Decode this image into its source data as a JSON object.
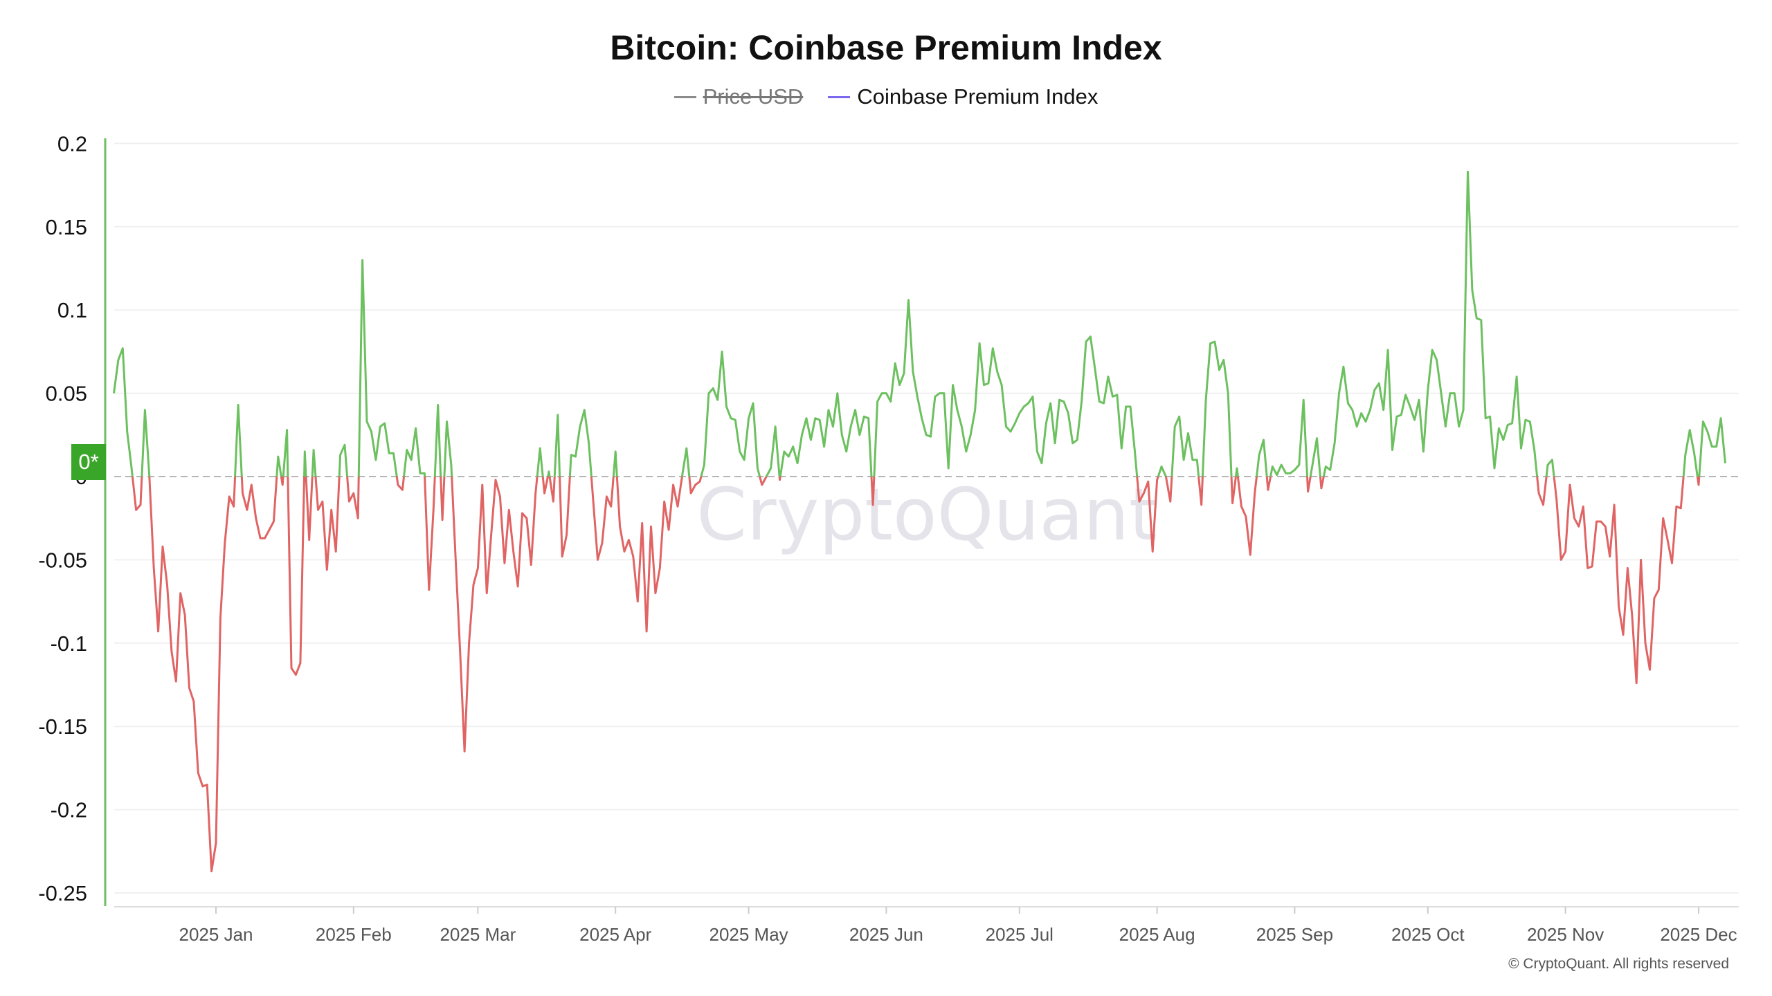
{
  "chart_data": {
    "type": "line",
    "title": "Bitcoin: Coinbase Premium Index",
    "legend": [
      {
        "name": "Price USD",
        "color": "#8c8c8c",
        "hidden": true
      },
      {
        "name": "Coinbase Premium Index",
        "color": "#7b68ee",
        "hidden": false
      }
    ],
    "legend_placement": "top-center",
    "positive_color": "#6cc05f",
    "negative_color": "#e06464",
    "reference_line": 0,
    "reference_label": "0*",
    "ylim": [
      -0.25,
      0.2
    ],
    "yticks": [
      "0.2",
      "0.15",
      "0.1",
      "0.05",
      "0",
      "-0.05",
      "-0.1",
      "-0.15",
      "-0.2",
      "-0.25"
    ],
    "ytick_values": [
      0.2,
      0.15,
      0.1,
      0.05,
      0,
      -0.05,
      -0.1,
      -0.15,
      -0.2,
      -0.25
    ],
    "xticks": [
      {
        "label": "2025 Jan",
        "date": "2025-01-01"
      },
      {
        "label": "2025 Feb",
        "date": "2025-02-01"
      },
      {
        "label": "2025 Mar",
        "date": "2025-03-01"
      },
      {
        "label": "2025 Apr",
        "date": "2025-04-01"
      },
      {
        "label": "2025 May",
        "date": "2025-05-01"
      },
      {
        "label": "2025 Jun",
        "date": "2025-06-01"
      },
      {
        "label": "2025 Jul",
        "date": "2025-07-01"
      },
      {
        "label": "2025 Aug",
        "date": "2025-08-01"
      },
      {
        "label": "2025 Sep",
        "date": "2025-09-01"
      },
      {
        "label": "2025 Oct",
        "date": "2025-10-01"
      },
      {
        "label": "2025 Nov",
        "date": "2025-11-01"
      },
      {
        "label": "2025 Dec",
        "date": "2025-12-01"
      }
    ],
    "grid": true,
    "series_by_month": [
      {
        "month": "2024-12",
        "values": [
          null,
          null,
          null,
          null,
          null,
          null,
          null,
          null,
          0.05,
          0.07,
          0.077,
          0.027,
          0.005,
          -0.02,
          -0.017,
          0.04,
          0.0,
          -0.055,
          -0.093,
          -0.042,
          -0.065,
          -0.105,
          -0.123,
          -0.07,
          -0.083,
          -0.127,
          -0.135,
          -0.178,
          -0.186,
          -0.185,
          -0.237
        ]
      },
      {
        "month": "2025-01",
        "values": [
          -0.22,
          -0.085,
          -0.04,
          -0.012,
          -0.018,
          0.043,
          -0.01,
          -0.02,
          -0.005,
          -0.025,
          -0.037,
          -0.037,
          -0.032,
          -0.027,
          0.012,
          -0.005,
          0.028,
          -0.115,
          -0.119,
          -0.112,
          0.015,
          -0.038,
          0.016,
          -0.02,
          -0.015,
          -0.056,
          -0.02,
          -0.045,
          0.013,
          0.019,
          -0.015
        ]
      },
      {
        "month": "2025-02",
        "values": [
          -0.01,
          -0.025,
          0.13,
          0.033,
          0.027,
          0.01,
          0.03,
          0.032,
          0.014,
          0.014,
          -0.005,
          -0.008,
          0.016,
          0.01,
          0.029,
          0.002,
          0.002,
          -0.068,
          -0.02,
          0.043,
          -0.026,
          0.033,
          0.007,
          -0.05,
          -0.105,
          -0.165,
          -0.1,
          -0.065
        ]
      },
      {
        "month": "2025-03",
        "values": [
          -0.055,
          -0.005,
          -0.07,
          -0.035,
          -0.002,
          -0.012,
          -0.052,
          -0.02,
          -0.045,
          -0.066,
          -0.022,
          -0.025,
          -0.053,
          -0.01,
          0.017,
          -0.01,
          0.003,
          -0.015,
          0.037,
          -0.048,
          -0.035,
          0.013,
          0.012,
          0.03,
          0.04,
          0.02,
          -0.015,
          -0.05,
          -0.04,
          -0.012,
          -0.018
        ]
      },
      {
        "month": "2025-04",
        "values": [
          0.015,
          -0.03,
          -0.045,
          -0.038,
          -0.048,
          -0.075,
          -0.028,
          -0.093,
          -0.03,
          -0.07,
          -0.055,
          -0.015,
          -0.032,
          -0.005,
          -0.018,
          0.0,
          0.017,
          -0.01,
          -0.005,
          -0.003,
          0.007,
          0.05,
          0.053,
          0.046,
          0.075,
          0.042,
          0.035,
          0.034,
          0.015,
          0.01
        ]
      },
      {
        "month": "2025-05",
        "values": [
          0.035,
          0.044,
          0.005,
          -0.005,
          0.0,
          0.005,
          0.03,
          -0.002,
          0.015,
          0.012,
          0.018,
          0.008,
          0.025,
          0.035,
          0.022,
          0.035,
          0.034,
          0.018,
          0.04,
          0.03,
          0.05,
          0.025,
          0.015,
          0.03,
          0.04,
          0.025,
          0.036,
          0.035,
          -0.017,
          0.045,
          0.05
        ]
      },
      {
        "month": "2025-06",
        "values": [
          0.05,
          0.045,
          0.068,
          0.055,
          0.062,
          0.106,
          0.063,
          0.048,
          0.035,
          0.025,
          0.024,
          0.048,
          0.05,
          0.05,
          0.005,
          0.055,
          0.04,
          0.03,
          0.015,
          0.025,
          0.04,
          0.08,
          0.055,
          0.056,
          0.077,
          0.063,
          0.055,
          0.03,
          0.027,
          0.032
        ]
      },
      {
        "month": "2025-07",
        "values": [
          0.038,
          0.042,
          0.044,
          0.048,
          0.015,
          0.008,
          0.032,
          0.044,
          0.02,
          0.046,
          0.045,
          0.038,
          0.02,
          0.022,
          0.045,
          0.081,
          0.084,
          0.065,
          0.045,
          0.044,
          0.06,
          0.048,
          0.049,
          0.017,
          0.042,
          0.042,
          0.015,
          -0.015,
          -0.01,
          -0.003,
          -0.045
        ]
      },
      {
        "month": "2025-08",
        "values": [
          -0.002,
          0.006,
          0.0,
          -0.015,
          0.03,
          0.036,
          0.01,
          0.026,
          0.01,
          0.01,
          -0.017,
          0.046,
          0.08,
          0.081,
          0.064,
          0.07,
          0.05,
          -0.016,
          0.005,
          -0.018,
          -0.024,
          -0.047,
          -0.01,
          0.013,
          0.022,
          -0.008,
          0.006,
          0.001,
          0.007,
          0.002,
          0.002
        ]
      },
      {
        "month": "2025-09",
        "values": [
          0.004,
          0.007,
          0.046,
          -0.009,
          0.007,
          0.023,
          -0.007,
          0.006,
          0.004,
          0.02,
          0.05,
          0.066,
          0.044,
          0.04,
          0.03,
          0.038,
          0.033,
          0.04,
          0.052,
          0.056,
          0.04,
          0.076,
          0.016,
          0.036,
          0.037,
          0.049,
          0.042,
          0.034,
          0.046,
          0.015
        ]
      },
      {
        "month": "2025-10",
        "values": [
          0.052,
          0.076,
          0.07,
          0.05,
          0.03,
          0.05,
          0.05,
          0.03,
          0.04,
          0.183,
          0.112,
          0.095,
          0.094,
          0.035,
          0.036,
          0.005,
          0.029,
          0.022,
          0.031,
          0.032,
          0.06,
          0.017,
          0.034,
          0.033,
          0.016,
          -0.01,
          -0.017,
          0.007,
          0.01,
          -0.014,
          -0.05
        ]
      },
      {
        "month": "2025-11",
        "values": [
          -0.045,
          -0.005,
          -0.025,
          -0.03,
          -0.018,
          -0.055,
          -0.054,
          -0.027,
          -0.027,
          -0.03,
          -0.048,
          -0.017,
          -0.078,
          -0.095,
          -0.055,
          -0.083,
          -0.124,
          -0.05,
          -0.1,
          -0.116,
          -0.073,
          -0.068,
          -0.025,
          -0.038,
          -0.052,
          -0.018,
          -0.019,
          0.013,
          0.028,
          0.014
        ]
      },
      {
        "month": "2025-12",
        "values": [
          -0.005,
          0.033,
          0.027,
          0.018,
          0.018,
          0.035,
          0.008
        ]
      }
    ]
  },
  "watermark": "CryptoQuant",
  "copyright": "© CryptoQuant. All rights reserved"
}
